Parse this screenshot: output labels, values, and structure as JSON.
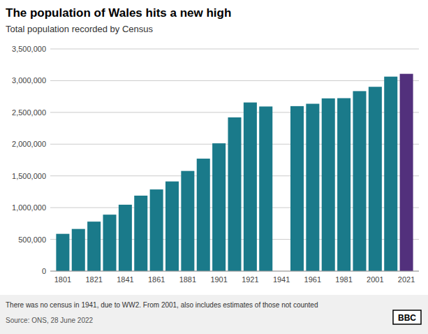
{
  "chart_data": {
    "type": "bar",
    "title": "The population of Wales hits a new high",
    "subtitle": "Total population recorded by Census",
    "footnote": "There was no census in 1941, due to WW2. From 2001, also includes estimates of those not counted",
    "source": "Source: ONS, 28 June 2022",
    "annotations": [
      "BBC"
    ],
    "x": [
      1801,
      1811,
      1821,
      1831,
      1841,
      1851,
      1861,
      1871,
      1881,
      1891,
      1901,
      1911,
      1921,
      1931,
      1951,
      1961,
      1971,
      1981,
      1991,
      2001,
      2011,
      2021
    ],
    "values": [
      587126,
      664190,
      779645,
      889442,
      1046024,
      1188914,
      1286397,
      1412583,
      1577774,
      1771669,
      2012924,
      2421218,
      2656474,
      2593058,
      2598675,
      2635938,
      2720963,
      2724079,
      2835073,
      2903085,
      3063456,
      3107494
    ],
    "colors": [
      "#1a7a8a",
      "#1a7a8a",
      "#1a7a8a",
      "#1a7a8a",
      "#1a7a8a",
      "#1a7a8a",
      "#1a7a8a",
      "#1a7a8a",
      "#1a7a8a",
      "#1a7a8a",
      "#1a7a8a",
      "#1a7a8a",
      "#1a7a8a",
      "#1a7a8a",
      "#1a7a8a",
      "#1a7a8a",
      "#1a7a8a",
      "#1a7a8a",
      "#1a7a8a",
      "#1a7a8a",
      "#1a7a8a",
      "#52307c"
    ],
    "xlim": [
      1793,
      2029
    ],
    "xticks": [
      1801,
      1821,
      1841,
      1861,
      1881,
      1901,
      1921,
      1941,
      1961,
      1981,
      2001,
      2021
    ],
    "ylim": [
      0,
      3500000
    ],
    "yticks": [
      0,
      {
        "value": 500000,
        "label": "500,000"
      },
      {
        "value": 1000000,
        "label": "1,000,000"
      },
      {
        "value": 1500000,
        "label": "1,500,000"
      },
      {
        "value": 2000000,
        "label": "2,000,000"
      },
      {
        "value": 2500000,
        "label": "2,500,000"
      },
      {
        "value": 3000000,
        "label": "3,000,000"
      },
      {
        "value": 3500000,
        "label": "3,500,000"
      }
    ],
    "grid": true
  }
}
